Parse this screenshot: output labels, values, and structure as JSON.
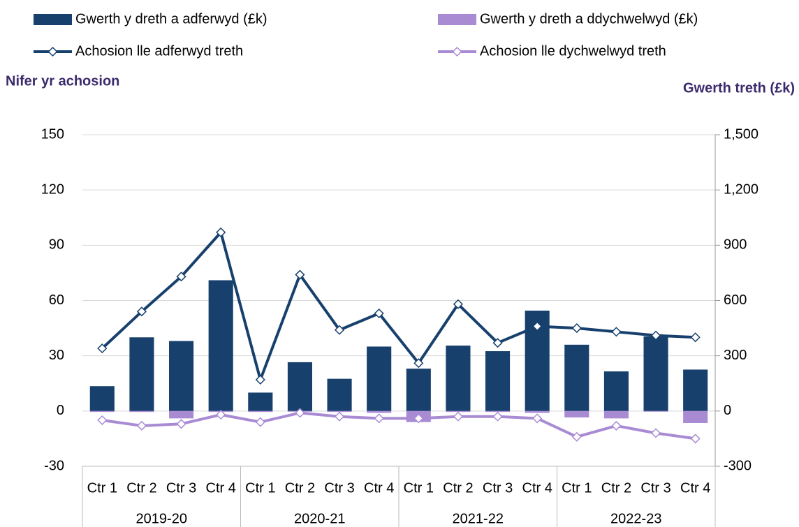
{
  "chart_data": {
    "type": "bar_line_combo",
    "y_label": "Nifer yr achosion",
    "y2_label": "Gwerth treth (£k)",
    "categories": [
      "Ctr 1",
      "Ctr 2",
      "Ctr 3",
      "Ctr 4",
      "Ctr 1",
      "Ctr 2",
      "Ctr 3",
      "Ctr 4",
      "Ctr 1",
      "Ctr 2",
      "Ctr 3",
      "Ctr 4",
      "Ctr 1",
      "Ctr 2",
      "Ctr 3",
      "Ctr 4"
    ],
    "group_labels": [
      "2019-20",
      "2020-21",
      "2021-22",
      "2022-23"
    ],
    "ylim": [
      -30,
      150
    ],
    "yticks": [
      -30,
      0,
      30,
      60,
      90,
      120,
      150
    ],
    "y2lim": [
      -300,
      1500
    ],
    "y2ticks": [
      -300,
      0,
      300,
      600,
      900,
      {
        "value": 1200,
        "label": "1,200"
      },
      {
        "value": 1500,
        "label": "1,500"
      }
    ],
    "grid": true,
    "series": [
      {
        "name": "Gwerth y dreth a adferwyd (£k)",
        "kind": "bar",
        "axis": "y2",
        "color": "#17406d",
        "values": [
          135,
          400,
          380,
          710,
          100,
          265,
          175,
          350,
          230,
          355,
          325,
          545,
          360,
          215,
          405,
          225
        ]
      },
      {
        "name": "Gwerth y dreth a ddychwelwyd (£k)",
        "kind": "bar",
        "axis": "y2",
        "color": "#a98bd4",
        "values": [
          -5,
          -5,
          -40,
          -5,
          -5,
          -3,
          -5,
          -10,
          -60,
          -5,
          -5,
          -10,
          -35,
          -40,
          -3,
          -65
        ]
      },
      {
        "name": "Achosion lle adferwyd treth",
        "kind": "line",
        "color": "#17406d",
        "values": [
          34,
          54,
          73,
          97,
          17,
          74,
          44,
          53,
          26,
          58,
          37,
          46,
          45,
          43,
          41,
          40
        ]
      },
      {
        "name": "Achosion lle dychwelwyd treth",
        "kind": "line",
        "color": "#a98bd4",
        "values": [
          -5,
          -8,
          -7,
          -2,
          -6,
          -1,
          -3,
          -4,
          -4,
          -3,
          -3,
          -4,
          -14,
          -8,
          -12,
          -15
        ]
      }
    ]
  }
}
